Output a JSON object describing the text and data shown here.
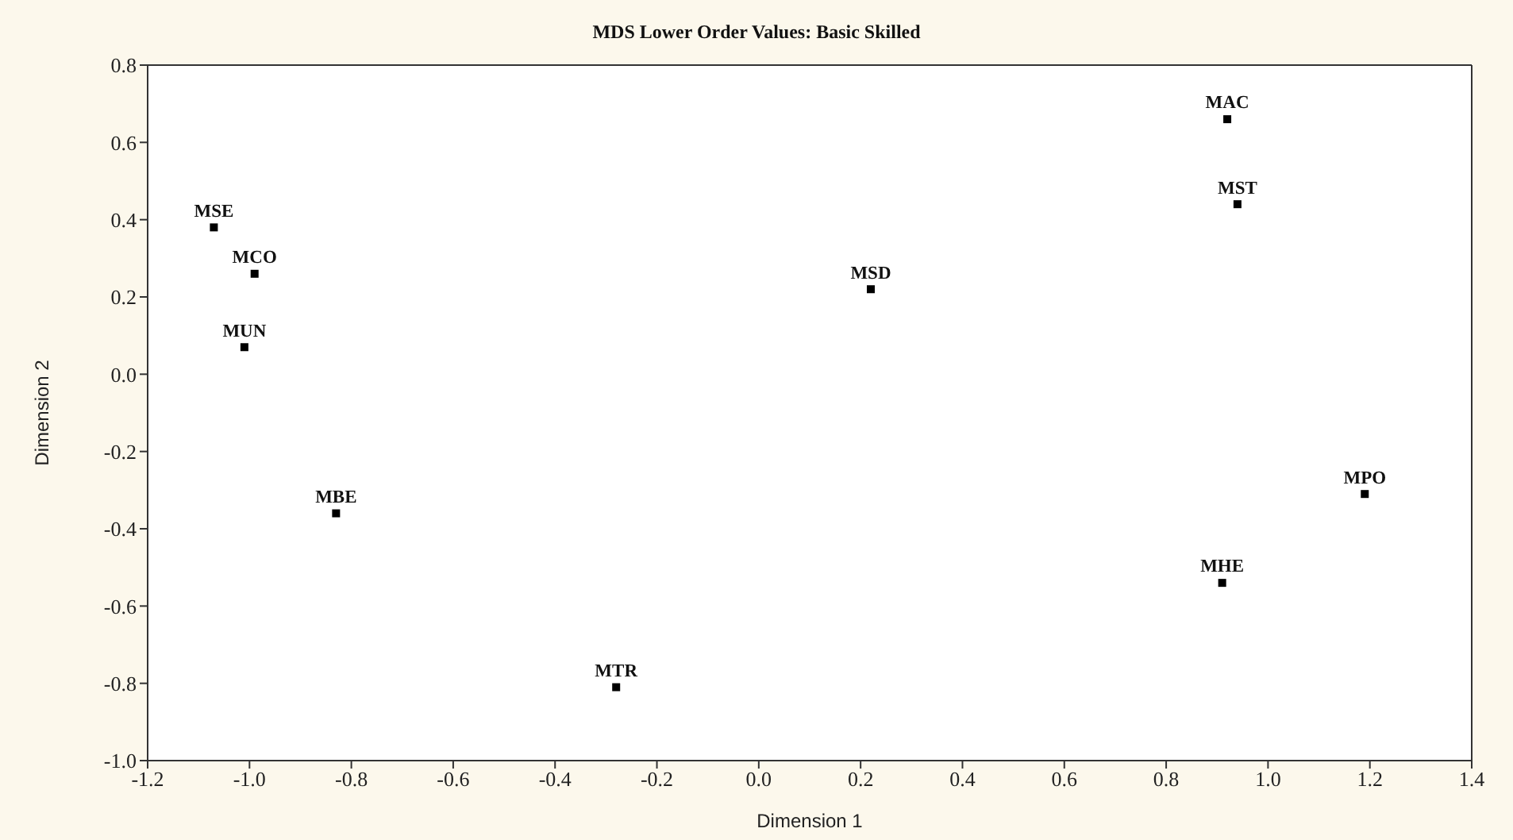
{
  "chart_data": {
    "type": "scatter",
    "title": "MDS Lower Order Values: Basic Skilled",
    "xlabel": "Dimension 1",
    "ylabel": "Dimension 2",
    "x": [
      -1.07,
      -0.99,
      -1.01,
      -0.83,
      -0.28,
      0.22,
      0.92,
      0.94,
      1.19,
      0.91
    ],
    "values": [
      0.38,
      0.26,
      0.07,
      -0.36,
      -0.81,
      0.22,
      0.66,
      0.44,
      -0.31,
      -0.54
    ],
    "value_labels": [
      "MSE",
      "MCO",
      "MUN",
      "MBE",
      "MTR",
      "MSD",
      "MAC",
      "MST",
      "MPO",
      "MHE"
    ],
    "color": "#000000",
    "marker": "square",
    "xlim": [
      -1.2,
      1.4
    ],
    "xticks": [
      -1.2,
      {
        "value": -1,
        "label": "-1.0"
      },
      -0.8,
      -0.6,
      -0.4,
      -0.2,
      {
        "value": 0,
        "label": "0.0"
      },
      0.2,
      0.4,
      0.6,
      0.8,
      {
        "value": 1,
        "label": "1.0"
      },
      1.2,
      1.4
    ],
    "ylim": [
      -1,
      0.8
    ],
    "yticks": [
      {
        "value": -1,
        "label": "-1.0"
      },
      -0.8,
      -0.6,
      -0.4,
      -0.2,
      {
        "value": 0,
        "label": "0.0"
      },
      0.2,
      0.4,
      0.6,
      0.8
    ]
  }
}
